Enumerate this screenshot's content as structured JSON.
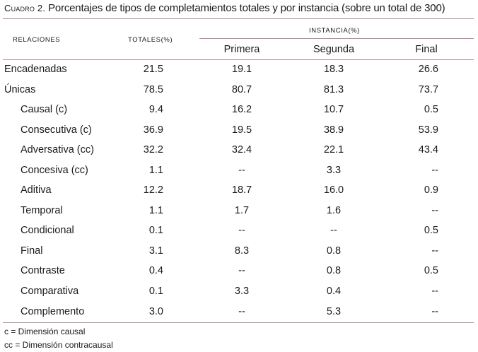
{
  "caption": {
    "label": "Cuadro 2.",
    "text": " Porcentajes de tipos de completamientos totales y por instancia (sobre un total de 300)"
  },
  "header": {
    "relaciones": "Relaciones",
    "totales": "Totales(%)",
    "instancia": "Instancia(%)",
    "sub": [
      "Primera",
      "Segunda",
      "Final"
    ]
  },
  "rows": [
    {
      "label": "Encadenadas",
      "total": "21.5",
      "primera": "19.1",
      "segunda": "18.3",
      "final": "26.6"
    },
    {
      "label": "Únicas",
      "total": "78.5",
      "primera": "80.7",
      "segunda": "81.3",
      "final": "73.7"
    },
    {
      "label": "Causal (c)",
      "total": "9.4",
      "primera": "16.2",
      "segunda": "10.7",
      "final": "0.5"
    },
    {
      "label": "Consecutiva (c)",
      "total": "36.9",
      "primera": "19.5",
      "segunda": "38.9",
      "final": "53.9"
    },
    {
      "label": "Adversativa (cc)",
      "total": "32.2",
      "primera": "32.4",
      "segunda": "22.1",
      "final": "43.4"
    },
    {
      "label": "Concesiva (cc)",
      "total": "1.1",
      "primera": "--",
      "segunda": "3.3",
      "final": "--"
    },
    {
      "label": "Aditiva",
      "total": "12.2",
      "primera": "18.7",
      "segunda": "16.0",
      "final": "0.9"
    },
    {
      "label": "Temporal",
      "total": "1.1",
      "primera": "1.7",
      "segunda": "1.6",
      "final": "--"
    },
    {
      "label": "Condicional",
      "total": "0.1",
      "primera": "--",
      "segunda": "--",
      "final": "0.5"
    },
    {
      "label": "Final",
      "total": "3.1",
      "primera": "8.3",
      "segunda": "0.8",
      "final": "--"
    },
    {
      "label": "Contraste",
      "total": "0.4",
      "primera": "--",
      "segunda": "0.8",
      "final": "0.5"
    },
    {
      "label": "Comparativa",
      "total": "0.1",
      "primera": "3.3",
      "segunda": "0.4",
      "final": "--"
    },
    {
      "label": "Complemento",
      "total": "3.0",
      "primera": "--",
      "segunda": "5.3",
      "final": "--"
    }
  ],
  "notes": [
    "c = Dimensión causal",
    "cc = Dimensión contracausal"
  ]
}
